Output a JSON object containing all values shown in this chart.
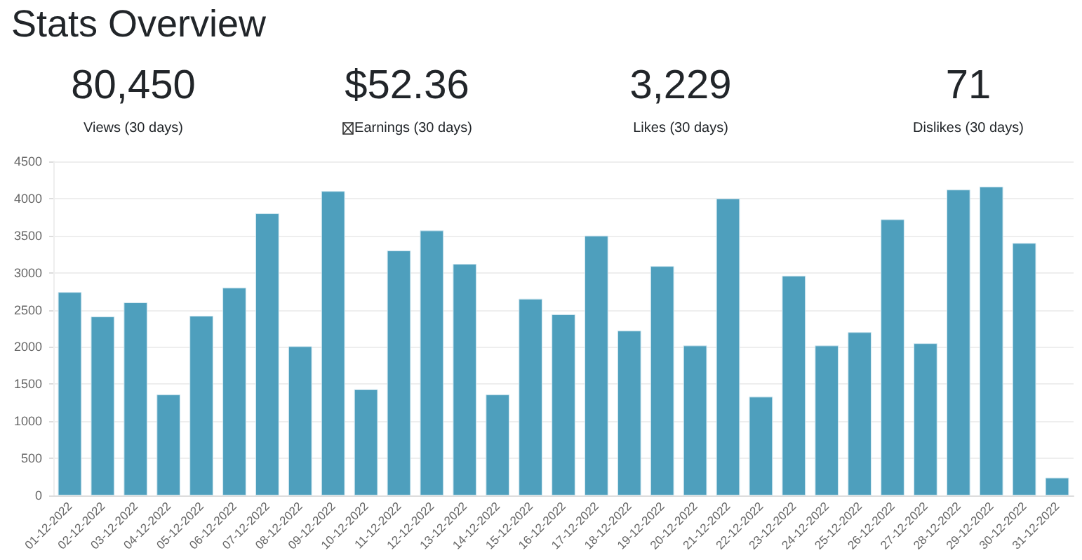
{
  "chart_data": {
    "type": "bar",
    "title": "Stats Overview",
    "annotations": [
      "80,450",
      "Views (30 days)",
      "$52.36",
      "Earnings (30 days)",
      "3,229",
      "Likes (30 days)",
      "71",
      "Dislikes (30 days)"
    ],
    "categories": [
      "01-12-2022",
      "02-12-2022",
      "03-12-2022",
      "04-12-2022",
      "05-12-2022",
      "06-12-2022",
      "07-12-2022",
      "08-12-2022",
      "09-12-2022",
      "10-12-2022",
      "11-12-2022",
      "12-12-2022",
      "13-12-2022",
      "14-12-2022",
      "15-12-2022",
      "16-12-2022",
      "17-12-2022",
      "18-12-2022",
      "19-12-2022",
      "20-12-2022",
      "21-12-2022",
      "22-12-2022",
      "23-12-2022",
      "24-12-2022",
      "25-12-2022",
      "26-12-2022",
      "27-12-2022",
      "28-12-2022",
      "29-12-2022",
      "30-12-2022",
      "31-12-2022"
    ],
    "values": [
      2740,
      2410,
      2600,
      1360,
      2420,
      2800,
      3800,
      2010,
      4100,
      1430,
      3300,
      3570,
      3120,
      1360,
      2650,
      2440,
      3500,
      2220,
      3090,
      2020,
      4000,
      1330,
      2960,
      2020,
      2200,
      3720,
      2050,
      4120,
      4160,
      3400,
      240
    ],
    "color": "#4e9fbd",
    "ylim": [
      0,
      4500
    ],
    "yticks": [
      0,
      500,
      1000,
      1500,
      2000,
      2500,
      3000,
      3500,
      4000,
      4500
    ],
    "grid": "y"
  }
}
